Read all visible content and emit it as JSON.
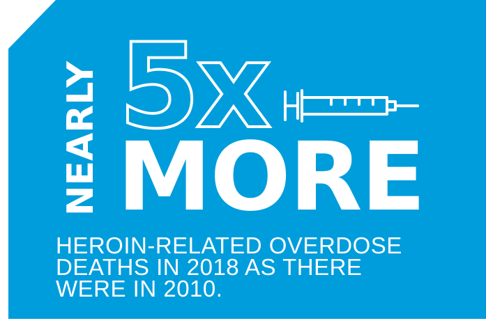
{
  "headline": {
    "prefix": "NEARLY",
    "multiplier": "5x",
    "emphasis": "MORE"
  },
  "caption": {
    "line1": "HEROIN-RELATED OVERDOSE",
    "line2": "DEATHS IN 2018 AS THERE",
    "line3": "WERE IN 2010."
  },
  "icons": {
    "illustration": "syringe-icon"
  },
  "colors": {
    "background": "#009ddc",
    "text": "#ffffff"
  }
}
